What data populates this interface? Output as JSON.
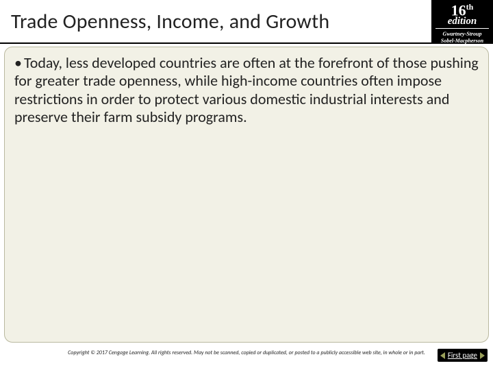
{
  "header": {
    "title": "Trade Openness, Income, and Growth"
  },
  "badge": {
    "main_number": "16",
    "main_suffix": "th",
    "edition": "edition",
    "authors_line1": "Gwartney-Stroup",
    "authors_line2": "Sobel-Macpherson"
  },
  "body": {
    "bullets": [
      "Today, less developed countries are often at the forefront of those pushing for greater trade openness, while high-income countries often impose restrictions in order to protect various domestic industrial interests and preserve their farm subsidy programs."
    ]
  },
  "footer": {
    "copyright": "Copyright © 2017 Cengage Learning. All rights reserved. May not be scanned, copied or duplicated, or posted to a publicly accessible web site, in whole or in part.",
    "first_page_label": "First page"
  },
  "colors": {
    "panel_bg": "#f2f1e6",
    "panel_border": "#b9b89f",
    "badge_bg": "#000000",
    "arrow_color": "#9aa05a"
  }
}
